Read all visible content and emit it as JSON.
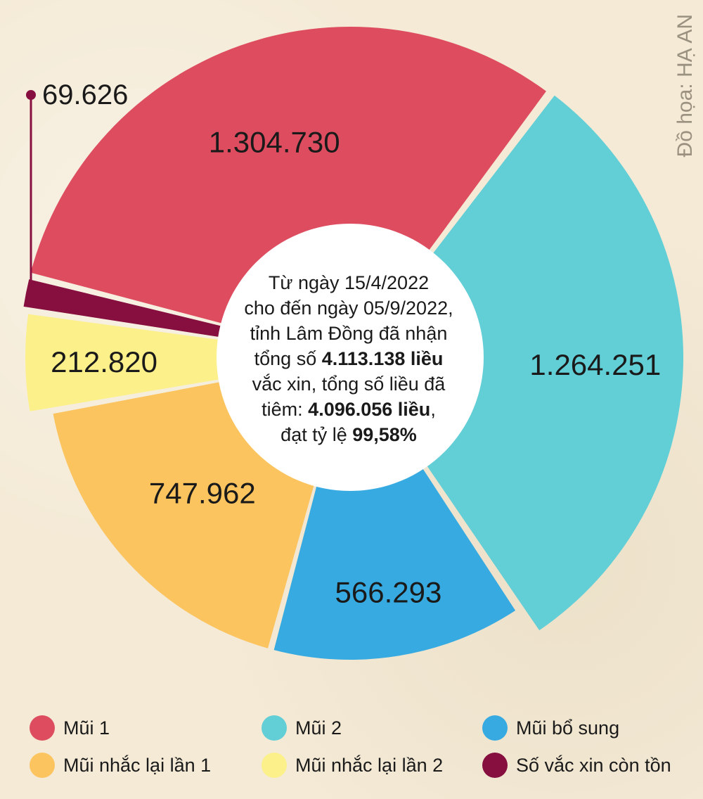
{
  "credit": "Đồ họa: HẠ AN",
  "center": {
    "line1": "Từ ngày 15/4/2022",
    "line2": "cho đến ngày 05/9/2022,",
    "line3": "tỉnh Lâm Đồng đã nhận",
    "line4_pre": "tổng số ",
    "received": "4.113.138 liều",
    "line5": "vắc xin, tổng số liều đã",
    "line6_pre": "tiêm: ",
    "injected": "4.096.056 liều",
    "line6_post": ",",
    "line7_pre": "đạt tỷ lệ ",
    "rate": "99,58%"
  },
  "chart_data": {
    "type": "pie",
    "style": "donut",
    "slices": [
      {
        "name": "Mũi 1",
        "value": 1304730,
        "label": "1.304.730",
        "color": "#de4d5f"
      },
      {
        "name": "Mũi 2",
        "value": 1264251,
        "label": "1.264.251",
        "color": "#62ced6"
      },
      {
        "name": "Mũi bổ sung",
        "value": 566293,
        "label": "566.293",
        "color": "#37abe1"
      },
      {
        "name": "Mũi nhắc lại lần 1",
        "value": 747962,
        "label": "747.962",
        "color": "#fbc45e"
      },
      {
        "name": "Mũi nhắc lại lần 2",
        "value": 212820,
        "label": "212.820",
        "color": "#fcf08a"
      },
      {
        "name": "Số vắc xin còn tồn",
        "value": 69626,
        "label": "69.626",
        "color": "#860f3f"
      }
    ],
    "legend_position": "bottom"
  }
}
